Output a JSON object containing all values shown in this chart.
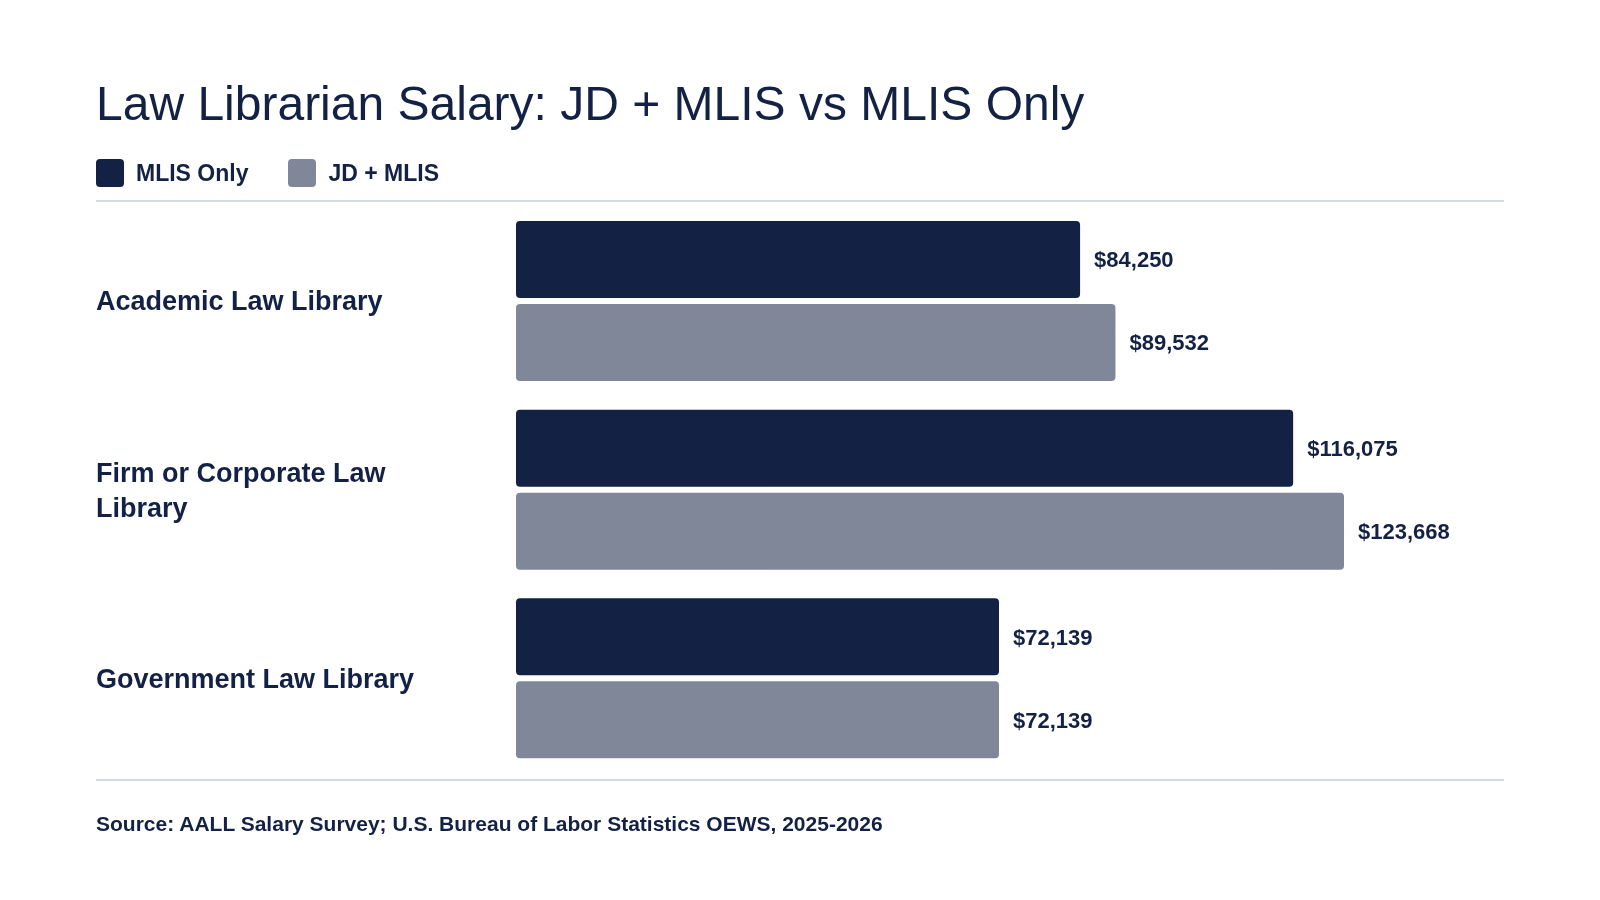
{
  "chart_data": {
    "type": "bar",
    "orientation": "horizontal",
    "title": "Law Librarian Salary: JD + MLIS vs MLIS Only",
    "categories": [
      "Academic Law Library",
      "Firm or Corporate Law Library",
      "Government Law Library"
    ],
    "series": [
      {
        "name": "MLIS Only",
        "color": "#132145",
        "values": [
          84250,
          116075,
          72139
        ],
        "value_labels": [
          "$84,250",
          "$116,075",
          "$72,139"
        ]
      },
      {
        "name": "JD + MLIS",
        "color": "#7f8799",
        "values": [
          89532,
          123668,
          72139
        ],
        "value_labels": [
          "$89,532",
          "$123,668",
          "$72,139"
        ]
      }
    ],
    "legend": "top left",
    "annotations": [
      "Source: AALL Salary Survey; U.S. Bureau of Labor Statistics OEWS, 2025-2026"
    ]
  }
}
